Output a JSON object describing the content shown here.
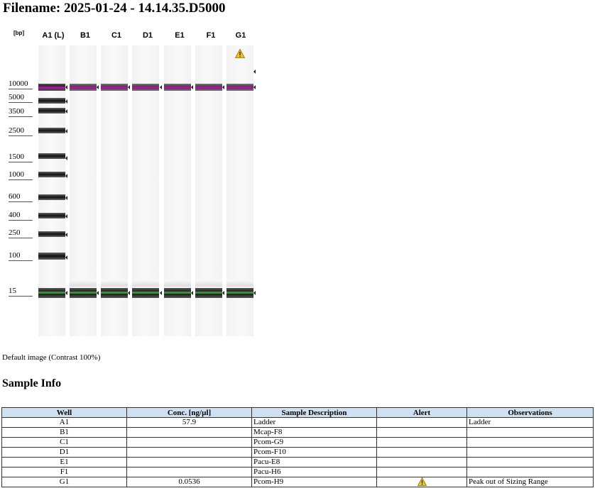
{
  "filename": "Filename: 2025-01-24 - 14.14.35.D5000",
  "gel": {
    "bp_unit": "[bp]",
    "lanes": [
      "A1 (L)",
      "B1",
      "C1",
      "D1",
      "E1",
      "F1",
      "G1"
    ],
    "ladder_ticks": [
      "10000",
      "5000",
      "3500",
      "2500",
      "1500",
      "1000",
      "600",
      "400",
      "250",
      "100",
      "15"
    ],
    "warning_lane": "G1",
    "colors": {
      "upper_marker": "#9b1f8f",
      "lower_marker": "#1ea11e",
      "band": "#111111"
    }
  },
  "caption": "Default image (Contrast 100%)",
  "section_title": "Sample Info",
  "table": {
    "headers": [
      "Well",
      "Conc. [ng/µl]",
      "Sample Description",
      "Alert",
      "Observations"
    ],
    "rows": [
      {
        "well": "A1",
        "conc": "57.9",
        "desc": "Ladder",
        "alert": "",
        "obs": "Ladder"
      },
      {
        "well": "B1",
        "conc": "",
        "desc": "Mcap-F8",
        "alert": "",
        "obs": ""
      },
      {
        "well": "C1",
        "conc": "",
        "desc": "Pcom-G9",
        "alert": "",
        "obs": ""
      },
      {
        "well": "D1",
        "conc": "",
        "desc": "Pcom-F10",
        "alert": "",
        "obs": ""
      },
      {
        "well": "E1",
        "conc": "",
        "desc": "Pacu-E8",
        "alert": "",
        "obs": ""
      },
      {
        "well": "F1",
        "conc": "",
        "desc": "Pacu-H6",
        "alert": "",
        "obs": ""
      },
      {
        "well": "G1",
        "conc": "0.0536",
        "desc": "Pcom-H9",
        "alert": "warning-icon",
        "obs": "Peak out of Sizing Range"
      }
    ]
  }
}
